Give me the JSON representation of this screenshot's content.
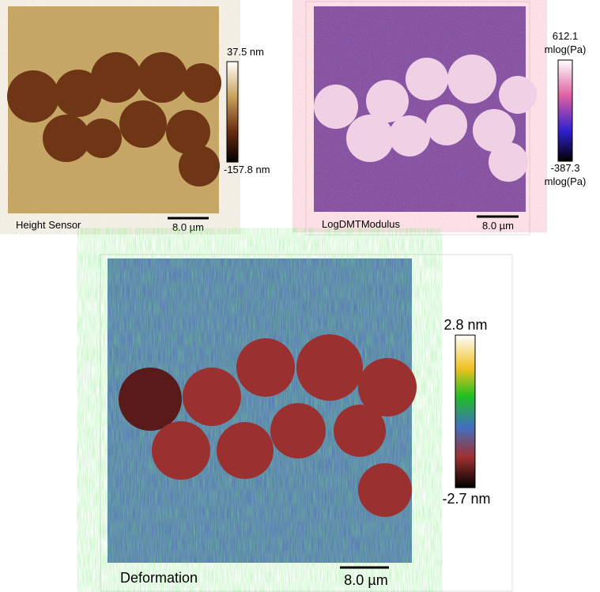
{
  "panels": [
    {
      "label": "Height Sensor",
      "scale_bar": "8.0 µm",
      "colorbar": {
        "max": "37.5 nm",
        "min": "-157.8 nm"
      }
    },
    {
      "label": "LogDMTModulus",
      "scale_bar": "8.0 µm",
      "colorbar": {
        "max": [
          "612.1",
          "mlog(Pa)"
        ],
        "min": [
          "-387.3",
          "mlog(Pa)"
        ]
      }
    },
    {
      "label": "Deformation",
      "scale_bar": "8.0 µm",
      "colorbar": {
        "max": "2.8 nm",
        "min": "-2.7 nm"
      }
    }
  ]
}
